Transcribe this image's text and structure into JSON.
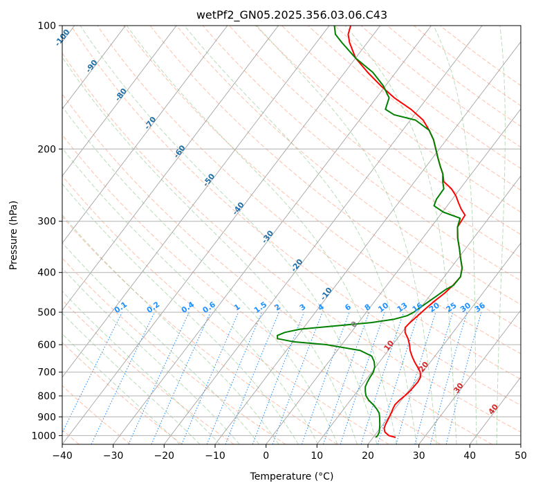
{
  "chart_data": {
    "type": "line",
    "title": "wetPf2_GN05.2025.356.03.06.C43",
    "xlabel": "Temperature (°C)",
    "ylabel": "Pressure (hPa)",
    "x_ticks": [
      "−40",
      "−30",
      "−20",
      "−10",
      "0",
      "10",
      "20",
      "30",
      "40",
      "50"
    ],
    "y_ticks": [
      "100",
      "200",
      "300",
      "400",
      "500",
      "600",
      "700",
      "800",
      "900",
      "1000"
    ],
    "xlim": [
      -40,
      50
    ],
    "ylim": [
      1050,
      100
    ],
    "y_scale": "log",
    "grid": true,
    "colors": {
      "temperature": "#ff0000",
      "dewpoint": "#008000",
      "isotherm": "#999999",
      "dry_adiabat": "#ff8c64",
      "moist_adiabat": "#7fbf7f",
      "mixing_ratio": "#1e90ff",
      "isotherm_label": "#1f6fa8",
      "zero_isotherm_label": "#808080",
      "warm_isotherm_label": "#d62728"
    },
    "isotherm_labels": [
      "-100",
      "-90",
      "-80",
      "-70",
      "-60",
      "-50",
      "-40",
      "-30",
      "-20",
      "-10",
      "0",
      "10",
      "20",
      "30",
      "40"
    ],
    "mixing_ratio_labels": [
      "0.1",
      "0.2",
      "0.4",
      "0.6",
      "1",
      "1.5",
      "2",
      "3",
      "4",
      "6",
      "8",
      "10",
      "13",
      "16",
      "20",
      "25",
      "30",
      "36"
    ],
    "series": [
      {
        "key": "temperature",
        "points": [
          [
            1010,
            24.4
          ],
          [
            1000,
            22.8
          ],
          [
            980,
            21.5
          ],
          [
            960,
            20.8
          ],
          [
            940,
            20.5
          ],
          [
            920,
            20.3
          ],
          [
            900,
            20.1
          ],
          [
            880,
            19.9
          ],
          [
            860,
            19.6
          ],
          [
            840,
            19.4
          ],
          [
            820,
            19.6
          ],
          [
            800,
            20.0
          ],
          [
            780,
            20.3
          ],
          [
            760,
            20.4
          ],
          [
            740,
            20.5
          ],
          [
            720,
            20.3
          ],
          [
            700,
            19.5
          ],
          [
            680,
            18.2
          ],
          [
            660,
            16.8
          ],
          [
            640,
            15.5
          ],
          [
            620,
            14.3
          ],
          [
            600,
            13.3
          ],
          [
            580,
            12.1
          ],
          [
            560,
            10.6
          ],
          [
            545,
            9.9
          ],
          [
            530,
            10.1
          ],
          [
            510,
            10.6
          ],
          [
            490,
            11.1
          ],
          [
            470,
            11.7
          ],
          [
            450,
            12.5
          ],
          [
            430,
            13.0
          ],
          [
            410,
            13.2
          ],
          [
            390,
            12.2
          ],
          [
            370,
            10.5
          ],
          [
            350,
            8.8
          ],
          [
            330,
            6.9
          ],
          [
            310,
            5.2
          ],
          [
            290,
            4.9
          ],
          [
            280,
            3.2
          ],
          [
            270,
            1.7
          ],
          [
            260,
            0.2
          ],
          [
            250,
            -1.7
          ],
          [
            240,
            -4.3
          ],
          [
            230,
            -5.6
          ],
          [
            220,
            -7.3
          ],
          [
            210,
            -9.0
          ],
          [
            200,
            -10.7
          ],
          [
            190,
            -12.5
          ],
          [
            180,
            -14.8
          ],
          [
            170,
            -17.5
          ],
          [
            160,
            -21.5
          ],
          [
            150,
            -26.5
          ],
          [
            140,
            -31.0
          ],
          [
            130,
            -35.5
          ],
          [
            120,
            -40.0
          ],
          [
            110,
            -43.5
          ],
          [
            105,
            -45.0
          ],
          [
            100,
            -45.8
          ]
        ]
      },
      {
        "key": "dewpoint",
        "points": [
          [
            1010,
            20.5
          ],
          [
            1000,
            20.6
          ],
          [
            980,
            20.4
          ],
          [
            960,
            19.9
          ],
          [
            940,
            19.4
          ],
          [
            920,
            18.8
          ],
          [
            900,
            18.2
          ],
          [
            880,
            17.5
          ],
          [
            860,
            16.4
          ],
          [
            840,
            15.1
          ],
          [
            820,
            13.6
          ],
          [
            800,
            12.4
          ],
          [
            780,
            11.6
          ],
          [
            760,
            10.9
          ],
          [
            740,
            10.6
          ],
          [
            720,
            10.4
          ],
          [
            700,
            10.3
          ],
          [
            680,
            9.8
          ],
          [
            660,
            8.9
          ],
          [
            640,
            7.6
          ],
          [
            620,
            4.5
          ],
          [
            600,
            -3.0
          ],
          [
            590,
            -10.0
          ],
          [
            580,
            -13.5
          ],
          [
            570,
            -14.0
          ],
          [
            560,
            -13.0
          ],
          [
            550,
            -10.5
          ],
          [
            540,
            -4.0
          ],
          [
            530,
            2.5
          ],
          [
            520,
            6.5
          ],
          [
            510,
            8.5
          ],
          [
            500,
            9.3
          ],
          [
            480,
            10.2
          ],
          [
            460,
            11.2
          ],
          [
            440,
            12.2
          ],
          [
            430,
            13.1
          ],
          [
            410,
            13.2
          ],
          [
            390,
            12.2
          ],
          [
            370,
            10.5
          ],
          [
            350,
            8.8
          ],
          [
            330,
            6.9
          ],
          [
            310,
            5.2
          ],
          [
            295,
            4.4
          ],
          [
            285,
            0.2
          ],
          [
            275,
            -2.6
          ],
          [
            265,
            -3.1
          ],
          [
            250,
            -3.2
          ],
          [
            240,
            -4.5
          ],
          [
            230,
            -5.6
          ],
          [
            220,
            -7.3
          ],
          [
            210,
            -9.0
          ],
          [
            200,
            -10.7
          ],
          [
            190,
            -12.5
          ],
          [
            180,
            -14.8
          ],
          [
            170,
            -19.0
          ],
          [
            165,
            -24.0
          ],
          [
            160,
            -26.5
          ],
          [
            150,
            -27.5
          ],
          [
            140,
            -30.5
          ],
          [
            130,
            -34.5
          ],
          [
            120,
            -40.0
          ],
          [
            110,
            -45.0
          ],
          [
            105,
            -47.5
          ],
          [
            100,
            -49.0
          ]
        ]
      }
    ]
  }
}
